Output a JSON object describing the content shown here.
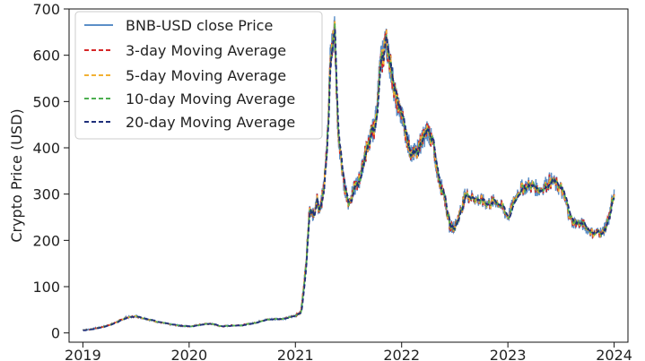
{
  "chart_data": {
    "type": "line",
    "title": "",
    "xlabel": "",
    "ylabel": "Crypto Price (USD)",
    "xlim": [
      2018.87,
      2024.13
    ],
    "ylim": [
      -20,
      700
    ],
    "x_ticks": [
      "2019",
      "2020",
      "2021",
      "2022",
      "2023",
      "2024"
    ],
    "y_ticks": [
      "0",
      "100",
      "200",
      "300",
      "400",
      "500",
      "600",
      "700"
    ],
    "grid": false,
    "legend_position": "top-left",
    "colors": {
      "close": "#5b8fc7",
      "ma3": "#d62728",
      "ma5": "#f2b134",
      "ma10": "#4caf50",
      "ma20": "#1f2f7a"
    },
    "series": [
      {
        "name": "BNB-USD close Price",
        "x": [
          2019.0,
          2019.1,
          2019.2,
          2019.3,
          2019.4,
          2019.5,
          2019.6,
          2019.7,
          2019.8,
          2019.9,
          2020.0,
          2020.1,
          2020.2,
          2020.3,
          2020.4,
          2020.5,
          2020.6,
          2020.7,
          2020.8,
          2020.9,
          2021.0,
          2021.05,
          2021.1,
          2021.13,
          2021.17,
          2021.2,
          2021.23,
          2021.27,
          2021.3,
          2021.33,
          2021.37,
          2021.4,
          2021.45,
          2021.5,
          2021.55,
          2021.6,
          2021.65,
          2021.7,
          2021.75,
          2021.8,
          2021.85,
          2021.9,
          2021.95,
          2022.0,
          2022.05,
          2022.1,
          2022.15,
          2022.2,
          2022.25,
          2022.3,
          2022.35,
          2022.4,
          2022.45,
          2022.5,
          2022.55,
          2022.6,
          2022.7,
          2022.8,
          2022.9,
          2023.0,
          2023.1,
          2023.2,
          2023.3,
          2023.4,
          2023.5,
          2023.6,
          2023.7,
          2023.8,
          2023.9,
          2023.95,
          2024.0
        ],
        "y": [
          6,
          9,
          14,
          22,
          33,
          36,
          30,
          24,
          19,
          16,
          14,
          18,
          20,
          14,
          16,
          17,
          21,
          28,
          30,
          31,
          38,
          45,
          150,
          260,
          255,
          290,
          260,
          320,
          420,
          600,
          650,
          430,
          330,
          280,
          310,
          330,
          380,
          420,
          450,
          580,
          630,
          570,
          500,
          470,
          420,
          380,
          400,
          420,
          440,
          400,
          330,
          300,
          230,
          230,
          260,
          300,
          290,
          280,
          285,
          250,
          310,
          320,
          310,
          330,
          310,
          240,
          235,
          215,
          220,
          245,
          310
        ]
      },
      {
        "name": "3-day Moving Average"
      },
      {
        "name": "5-day Moving Average"
      },
      {
        "name": "10-day Moving Average"
      },
      {
        "name": "20-day Moving Average"
      }
    ]
  }
}
